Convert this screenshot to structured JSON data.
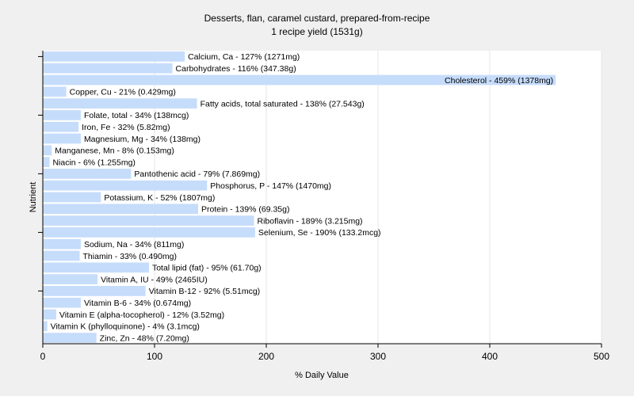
{
  "chart_data": {
    "type": "bar",
    "orientation": "horizontal",
    "title": "Desserts, flan, caramel custard, prepared-from-recipe",
    "subtitle": "1 recipe yield (1531g)",
    "xlabel": "% Daily Value",
    "ylabel": "Nutrient",
    "xlim": [
      0,
      500
    ],
    "xticks": [
      "0",
      "100",
      "200",
      "300",
      "400",
      "500"
    ],
    "grid": true,
    "bar_color": "#c6dcfb",
    "background_color": "#ffffff",
    "categories": [
      "Calcium, Ca",
      "Carbohydrates",
      "Cholesterol",
      "Copper, Cu",
      "Fatty acids, total saturated",
      "Folate, total",
      "Iron, Fe",
      "Magnesium, Mg",
      "Manganese, Mn",
      "Niacin",
      "Pantothenic acid",
      "Phosphorus, P",
      "Potassium, K",
      "Protein",
      "Riboflavin",
      "Selenium, Se",
      "Sodium, Na",
      "Thiamin",
      "Total lipid (fat)",
      "Vitamin A, IU",
      "Vitamin B-12",
      "Vitamin B-6",
      "Vitamin E (alpha-tocopherol)",
      "Vitamin K (phylloquinone)",
      "Zinc, Zn"
    ],
    "values": [
      127,
      116,
      459,
      21,
      138,
      34,
      32,
      34,
      8,
      6,
      79,
      147,
      52,
      139,
      189,
      190,
      34,
      33,
      95,
      49,
      92,
      34,
      12,
      4,
      48
    ],
    "labels": [
      "Calcium, Ca - 127% (1271mg)",
      "Carbohydrates - 116% (347.38g)",
      "Cholesterol - 459% (1378mg)",
      "Copper, Cu - 21% (0.429mg)",
      "Fatty acids, total saturated - 138% (27.543g)",
      "Folate, total - 34% (138mcg)",
      "Iron, Fe - 32% (5.82mg)",
      "Magnesium, Mg - 34% (138mg)",
      "Manganese, Mn - 8% (0.153mg)",
      "Niacin - 6% (1.255mg)",
      "Pantothenic acid - 79% (7.869mg)",
      "Phosphorus, P - 147% (1470mg)",
      "Potassium, K - 52% (1807mg)",
      "Protein - 139% (69.35g)",
      "Riboflavin - 189% (3.215mg)",
      "Selenium, Se - 190% (133.2mcg)",
      "Sodium, Na - 34% (811mg)",
      "Thiamin - 33% (0.490mg)",
      "Total lipid (fat) - 95% (61.70g)",
      "Vitamin A, IU - 49% (2465IU)",
      "Vitamin B-12 - 92% (5.51mcg)",
      "Vitamin B-6 - 34% (0.674mg)",
      "Vitamin E (alpha-tocopherol) - 12% (3.52mg)",
      "Vitamin K (phylloquinone) - 4% (3.1mcg)",
      "Zinc, Zn - 48% (7.20mg)"
    ]
  }
}
